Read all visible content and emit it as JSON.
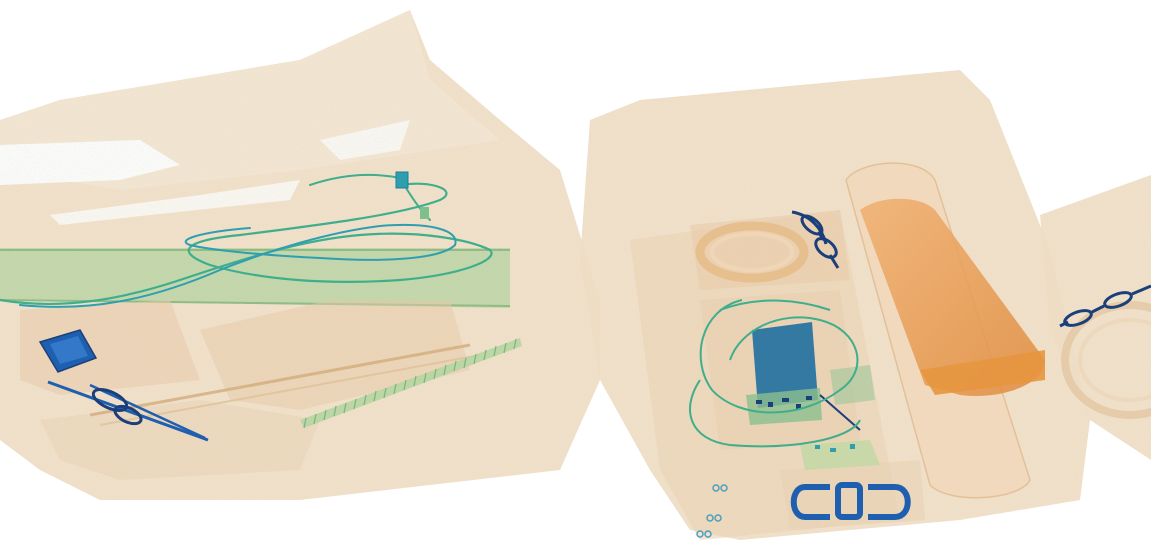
{
  "image": {
    "kind": "x-ray-baggage-scan",
    "background": "#ffffff",
    "palette": {
      "organic_light": "#f2d9b8",
      "organic_mid": "#ebc49a",
      "organic_dark": "#e29a55",
      "mixed_green": "#a8c98a",
      "wire_green": "#3fae8c",
      "wire_teal": "#2f9fb0",
      "metal_blue": "#1f5fb0",
      "metal_dark": "#1b3f7a"
    },
    "objects": [
      "left-bag",
      "center-bag",
      "right-bag",
      "cables",
      "electronic-device",
      "scissors",
      "liquid-bottle",
      "headphones",
      "eyeglasses",
      "buckle",
      "comb",
      "circuit-board"
    ]
  }
}
